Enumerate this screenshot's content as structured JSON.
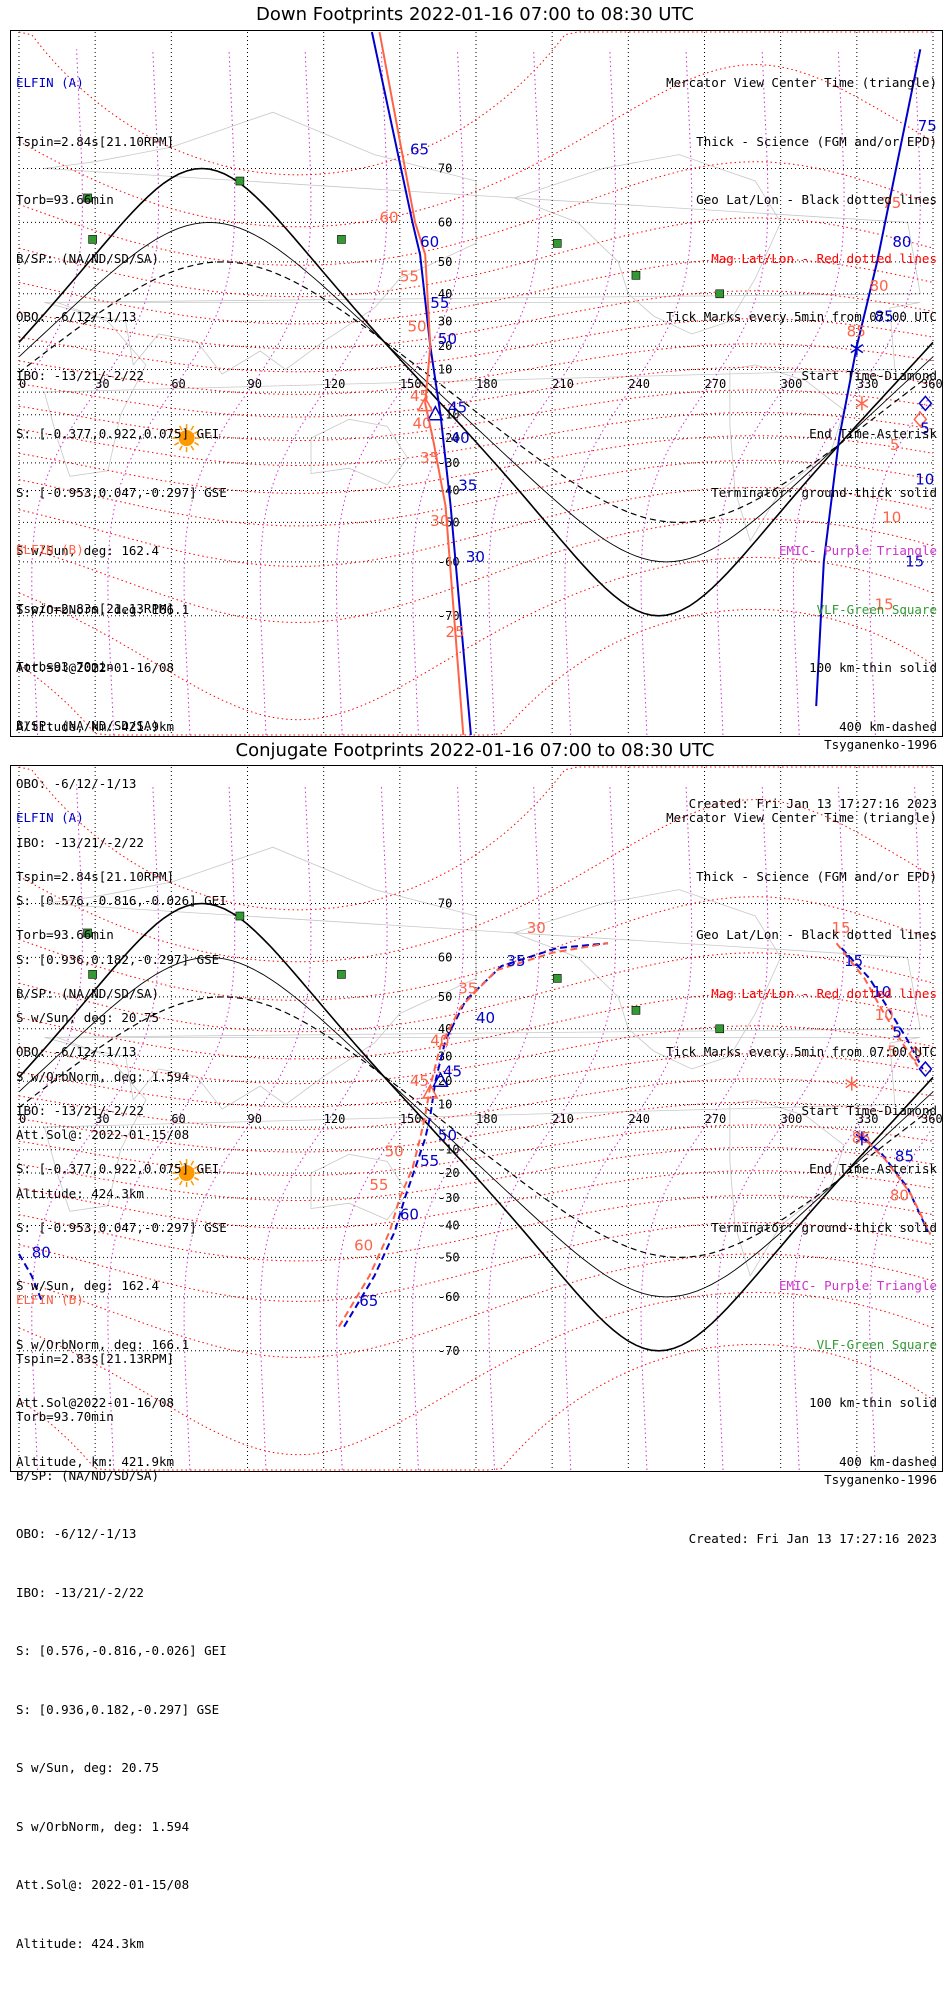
{
  "panels": [
    {
      "title": "Down Footprints 2022-01-16 07:00 to 08:30 UTC",
      "elfin_a": {
        "label": "ELFIN (A)",
        "lines": [
          "Tspin=2.84s[21.10RPM]",
          "Torb=93.66min",
          "B/SP: (NA/ND/SD/SA)",
          "OBO: -6/12/-1/13",
          "IBO: -13/21/-2/22",
          "S: [-0.377,0.922,0.075] GEI",
          "S: [-0.953,0.047,-0.297] GSE",
          "S w/Sun, deg: 162.4",
          "S w/OrbNorm, deg: 166.1",
          "Att.Sol@2022-01-16/08",
          "Altitude, km: 421.9km"
        ]
      },
      "elfin_b": {
        "label": "ELFIN (B)",
        "lines": [
          "Tspin=2.83s[21.13RPM]",
          "Torb=93.70min",
          "B/SP: (NA/ND/SD/SA)",
          "OBO: -6/12/-1/13",
          "IBO: -13/21/-2/22",
          "S: [0.576,-0.816,-0.026] GEI",
          "S: [0.936,0.182,-0.297] GSE",
          "S w/Sun, deg: 20.75",
          "S w/OrbNorm, deg: 1.594",
          "Att.Sol@: 2022-01-15/08",
          "Altitude: 424.3km"
        ]
      },
      "legend": [
        "Mercator View Center Time (triangle)",
        "Thick - Science (FGM and/or EPD)",
        "Geo Lat/Lon - Black dotted lines",
        "Mag Lat/Lon - Red dotted lines",
        "Tick Marks every 5min from 07:00 UTC",
        "Start Time-Diamond",
        "End Time-Asterisk",
        "Terminator: ground-thick solid",
        "EMIC- Purple Triangle",
        "VLF-Green Square",
        "100 km-thin solid",
        "400 km-dashed"
      ],
      "model": "Tsyganenko-1996",
      "created": "Created: Fri Jan 13 17:27:16 2023",
      "tracks": [
        {
          "name": "A",
          "color": "#0000cc",
          "dashed": false,
          "start_marker": "diamond",
          "points": [
            [
              139,
              83
            ],
            [
              155,
              60
            ],
            [
              158,
              52
            ],
            [
              162,
              20
            ],
            [
              166,
              -10
            ],
            [
              170,
              -45
            ],
            [
              178,
              -82
            ]
          ]
        },
        {
          "name": "B",
          "color": "#ff6347",
          "dashed": false,
          "start_marker": "diamond",
          "points": [
            [
              142,
              83
            ],
            [
              156,
              60
            ],
            [
              160,
              52
            ],
            [
              162,
              20
            ],
            [
              160,
              -5
            ],
            [
              163,
              -20
            ],
            [
              168,
              -45
            ],
            [
              175,
              -82
            ]
          ]
        },
        {
          "name": "A-right",
          "color": "#0000cc",
          "dashed": false,
          "start_marker": "none",
          "points": [
            [
              355,
              82
            ],
            [
              338,
              50
            ],
            [
              330,
              20
            ],
            [
              323,
              -20
            ],
            [
              317,
              -60
            ],
            [
              314,
              -80
            ]
          ]
        }
      ],
      "tick_labels": [
        {
          "text": "65",
          "color": "#0000cc",
          "lon": 154,
          "lat": 72
        },
        {
          "text": "60",
          "color": "#ff6347",
          "lon": 142,
          "lat": 60
        },
        {
          "text": "60",
          "color": "#0000cc",
          "lon": 158,
          "lat": 54
        },
        {
          "text": "55",
          "color": "#ff6347",
          "lon": 150,
          "lat": 44
        },
        {
          "text": "55",
          "color": "#0000cc",
          "lon": 162,
          "lat": 35
        },
        {
          "text": "50",
          "color": "#ff6347",
          "lon": 153,
          "lat": 26
        },
        {
          "text": "50",
          "color": "#0000cc",
          "lon": 165,
          "lat": 21
        },
        {
          "text": "45",
          "color": "#ff6347",
          "lon": 154,
          "lat": -4
        },
        {
          "text": "45",
          "color": "#0000cc",
          "lon": 169,
          "lat": -9
        },
        {
          "text": "40",
          "color": "#ff6347",
          "lon": 155,
          "lat": -16
        },
        {
          "text": "40",
          "color": "#0000cc",
          "lon": 170,
          "lat": -22
        },
        {
          "text": "35",
          "color": "#ff6347",
          "lon": 158,
          "lat": -30
        },
        {
          "text": "35",
          "color": "#0000cc",
          "lon": 173,
          "lat": -40
        },
        {
          "text": "30",
          "color": "#ff6347",
          "lon": 162,
          "lat": -51
        },
        {
          "text": "30",
          "color": "#0000cc",
          "lon": 176,
          "lat": -60
        },
        {
          "text": "25",
          "color": "#ff6347",
          "lon": 168,
          "lat": -73
        },
        {
          "text": "75",
          "color": "#0000cc",
          "lon": 354,
          "lat": 75
        },
        {
          "text": "75",
          "color": "#ff6347",
          "lon": 340,
          "lat": 63
        },
        {
          "text": "80",
          "color": "#0000cc",
          "lon": 344,
          "lat": 54
        },
        {
          "text": "80",
          "color": "#ff6347",
          "lon": 335,
          "lat": 41
        },
        {
          "text": "85",
          "color": "#0000cc",
          "lon": 337,
          "lat": 30
        },
        {
          "text": "85",
          "color": "#ff6347",
          "lon": 326,
          "lat": 24
        },
        {
          "text": "5",
          "color": "#0000cc",
          "lon": 355,
          "lat": -18
        },
        {
          "text": "5",
          "color": "#ff6347",
          "lon": 343,
          "lat": -25
        },
        {
          "text": "10",
          "color": "#0000cc",
          "lon": 353,
          "lat": -38
        },
        {
          "text": "10",
          "color": "#ff6347",
          "lon": 340,
          "lat": -50
        },
        {
          "text": "15",
          "color": "#0000cc",
          "lon": 349,
          "lat": -61
        },
        {
          "text": "15",
          "color": "#ff6347",
          "lon": 337,
          "lat": -69
        }
      ],
      "markers": [
        {
          "type": "triangle",
          "color": "#0000cc",
          "lon": 164,
          "lat": -10
        },
        {
          "type": "triangle",
          "color": "#ff6347",
          "lon": 160,
          "lat": -6
        },
        {
          "type": "asterisk",
          "color": "#0000cc",
          "lon": 330,
          "lat": 19
        },
        {
          "type": "asterisk",
          "color": "#ff6347",
          "lon": 332,
          "lat": -5
        },
        {
          "type": "diamond",
          "color": "#0000cc",
          "lon": 357,
          "lat": -5
        },
        {
          "type": "diamond",
          "color": "#ff6347",
          "lon": 355,
          "lat": -12
        }
      ]
    },
    {
      "title": "Conjugate Footprints 2022-01-16 07:00 to 08:30 UTC",
      "elfin_a": {
        "label": "ELFIN (A)",
        "lines": [
          "Tspin=2.84s[21.10RPM]",
          "Torb=93.66min",
          "B/SP: (NA/ND/SD/SA)",
          "OBO: -6/12/-1/13",
          "IBO: -13/21/-2/22",
          "S: [-0.377,0.922,0.075] GEI",
          "S: [-0.953,0.047,-0.297] GSE",
          "S w/Sun, deg: 162.4",
          "S w/OrbNorm, deg: 166.1",
          "Att.Sol@2022-01-16/08",
          "Altitude, km: 421.9km"
        ]
      },
      "elfin_b": {
        "label": "ELFIN (B)",
        "lines": [
          "Tspin=2.83s[21.13RPM]",
          "Torb=93.70min",
          "B/SP: (NA/ND/SD/SA)",
          "OBO: -6/12/-1/13",
          "IBO: -13/21/-2/22",
          "S: [0.576,-0.816,-0.026] GEI",
          "S: [0.936,0.182,-0.297] GSE",
          "S w/Sun, deg: 20.75",
          "S w/OrbNorm, deg: 1.594",
          "Att.Sol@: 2022-01-15/08",
          "Altitude: 424.3km"
        ]
      },
      "legend": [
        "Mercator View Center Time (triangle)",
        "Thick - Science (FGM and/or EPD)",
        "Geo Lat/Lon - Black dotted lines",
        "Mag Lat/Lon - Red dotted lines",
        "Tick Marks every 5min from 07:00 UTC",
        "Start Time-Diamond",
        "End Time-Asterisk",
        "Terminator: ground-thick solid",
        "EMIC- Purple Triangle",
        "VLF-Green Square",
        "100 km-thin solid",
        "400 km-dashed"
      ],
      "model": "Tsyganenko-1996",
      "created": "Created: Fri Jan 13 17:27:16 2023",
      "tracks": [
        {
          "name": "A",
          "color": "#0000cc",
          "dashed": true,
          "start_marker": "none",
          "points": [
            [
              128,
              -66
            ],
            [
              140,
              -55
            ],
            [
              148,
              -42
            ],
            [
              152,
              -30
            ],
            [
              156,
              -18
            ],
            [
              160,
              -5
            ],
            [
              162,
              5
            ],
            [
              164,
              20
            ],
            [
              168,
              36
            ],
            [
              176,
              49
            ],
            [
              190,
              58
            ],
            [
              212,
              62
            ],
            [
              232,
              63
            ]
          ]
        },
        {
          "name": "B",
          "color": "#ff6347",
          "dashed": true,
          "start_marker": "none",
          "points": [
            [
              126,
              -66
            ],
            [
              138,
              -55
            ],
            [
              146,
              -42
            ],
            [
              150,
              -30
            ],
            [
              155,
              -18
            ],
            [
              158,
              -5
            ],
            [
              160,
              5
            ],
            [
              162,
              18
            ],
            [
              166,
              34
            ],
            [
              174,
              47
            ],
            [
              188,
              57
            ],
            [
              210,
              61
            ],
            [
              232,
              63
            ]
          ]
        },
        {
          "name": "A-right",
          "color": "#0000cc",
          "dashed": true,
          "start_marker": "none",
          "points": [
            [
              324,
              62
            ],
            [
              335,
              55
            ],
            [
              342,
              47
            ],
            [
              350,
              36
            ],
            [
              356,
              25
            ]
          ]
        },
        {
          "name": "B-right",
          "color": "#ff6347",
          "dashed": true,
          "start_marker": "none",
          "points": [
            [
              322,
              63
            ],
            [
              333,
              55
            ],
            [
              340,
              46
            ],
            [
              348,
              35
            ],
            [
              354,
              26
            ]
          ]
        },
        {
          "name": "A-end",
          "color": "#0000cc",
          "dashed": true,
          "start_marker": "none",
          "points": [
            [
              330,
              -2
            ],
            [
              340,
              -12
            ],
            [
              350,
              -26
            ],
            [
              358,
              -42
            ]
          ]
        },
        {
          "name": "B-end",
          "color": "#ff6347",
          "dashed": true,
          "start_marker": "none",
          "points": [
            [
              331,
              -3
            ],
            [
              341,
              -14
            ],
            [
              351,
              -28
            ],
            [
              359,
              -43
            ]
          ]
        },
        {
          "name": "left-edge",
          "color": "#0000cc",
          "dashed": true,
          "start_marker": "none",
          "points": [
            [
              0,
              -49
            ],
            [
              5,
              -55
            ],
            [
              9,
              -61
            ]
          ]
        }
      ],
      "tick_labels": [
        {
          "text": "30",
          "color": "#ff6347",
          "lon": 200,
          "lat": 65
        },
        {
          "text": "35",
          "color": "#0000cc",
          "lon": 192,
          "lat": 58
        },
        {
          "text": "35",
          "color": "#ff6347",
          "lon": 173,
          "lat": 51
        },
        {
          "text": "40",
          "color": "#0000cc",
          "lon": 180,
          "lat": 42
        },
        {
          "text": "40",
          "color": "#ff6347",
          "lon": 162,
          "lat": 34
        },
        {
          "text": "45",
          "color": "#0000cc",
          "lon": 167,
          "lat": 22
        },
        {
          "text": "45",
          "color": "#ff6347",
          "lon": 154,
          "lat": 18
        },
        {
          "text": "50",
          "color": "#0000cc",
          "lon": 165,
          "lat": -6
        },
        {
          "text": "50",
          "color": "#ff6347",
          "lon": 144,
          "lat": -13
        },
        {
          "text": "55",
          "color": "#0000cc",
          "lon": 158,
          "lat": -17
        },
        {
          "text": "55",
          "color": "#ff6347",
          "lon": 138,
          "lat": -27
        },
        {
          "text": "60",
          "color": "#0000cc",
          "lon": 150,
          "lat": -38
        },
        {
          "text": "60",
          "color": "#ff6347",
          "lon": 132,
          "lat": -48
        },
        {
          "text": "65",
          "color": "#0000cc",
          "lon": 134,
          "lat": -62
        },
        {
          "text": "15",
          "color": "#ff6347",
          "lon": 320,
          "lat": 65
        },
        {
          "text": "15",
          "color": "#0000cc",
          "lon": 325,
          "lat": 58
        },
        {
          "text": "10",
          "color": "#0000cc",
          "lon": 336,
          "lat": 50
        },
        {
          "text": "10",
          "color": "#ff6347",
          "lon": 337,
          "lat": 43
        },
        {
          "text": "5",
          "color": "#0000cc",
          "lon": 344,
          "lat": 37
        },
        {
          "text": "5",
          "color": "#ff6347",
          "lon": 342,
          "lat": 30
        },
        {
          "text": "85",
          "color": "#0000cc",
          "lon": 345,
          "lat": -15
        },
        {
          "text": "85",
          "color": "#ff6347",
          "lon": 328,
          "lat": -7
        },
        {
          "text": "80",
          "color": "#ff6347",
          "lon": 343,
          "lat": -31
        },
        {
          "text": "80",
          "color": "#0000cc",
          "lon": 5,
          "lat": -50
        }
      ],
      "markers": [
        {
          "type": "triangle",
          "color": "#0000cc",
          "lon": 166,
          "lat": 20
        },
        {
          "type": "triangle",
          "color": "#ff6347",
          "lon": 162,
          "lat": 15
        },
        {
          "type": "diamond",
          "color": "#0000cc",
          "lon": 357,
          "lat": 25
        },
        {
          "type": "diamond",
          "color": "#ff6347",
          "lon": 353,
          "lat": 31
        },
        {
          "type": "asterisk",
          "color": "#0000cc",
          "lon": 332,
          "lat": -5
        },
        {
          "type": "asterisk",
          "color": "#ff6347",
          "lon": 328,
          "lat": 19
        }
      ]
    }
  ],
  "chart_data": {
    "type": "map",
    "lon_ticks": [
      0,
      30,
      60,
      90,
      120,
      150,
      180,
      210,
      240,
      270,
      300,
      330,
      360
    ],
    "lat_ticks": [
      70,
      60,
      50,
      40,
      30,
      20,
      10,
      -10,
      -20,
      -30,
      -40,
      -50,
      -60,
      -70
    ],
    "xlim": [
      0,
      360
    ],
    "ylim": [
      -82,
      83
    ],
    "terminator": {
      "amplitude_deg": 70,
      "peak_lon": 72
    },
    "km100": {
      "amplitude_deg": 60,
      "peak_lon": 75
    },
    "km400": {
      "amplitude_deg": 50,
      "peak_lon": 80
    },
    "sun": {
      "lon": 66,
      "lat": -20
    },
    "vlf_squares": [
      [
        27,
        65
      ],
      [
        29,
        56
      ],
      [
        87,
        68
      ],
      [
        127,
        56
      ],
      [
        212,
        55
      ],
      [
        243,
        46
      ],
      [
        276,
        40
      ]
    ]
  },
  "colors": {
    "ela": "#0000cc",
    "elb": "#ff6347",
    "mag": "#ff0000",
    "emic": "#cc33cc",
    "vlf": "#339933",
    "sun": "#ff9900"
  }
}
